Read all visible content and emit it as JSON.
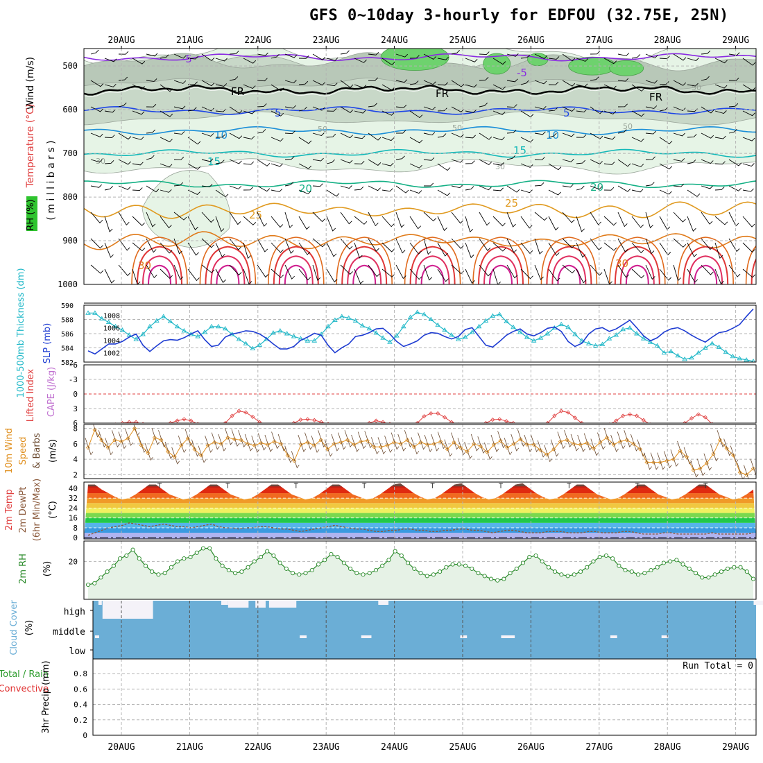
{
  "title": "GFS 0~10day 3-hourly for EDFOU (32.75E, 25N)",
  "chart_data": [
    {
      "type": "line",
      "panel": "upper-air cross-section",
      "labels": {
        "wind": "Wind (m/s)",
        "temp": "Temperature (°C)",
        "rh": "RH (%)",
        "units": "( m i l l i b a r s )"
      },
      "y_ticks": [
        "500",
        "600",
        "700",
        "800",
        "900",
        "1000"
      ],
      "pressure_range": [
        460,
        1000
      ],
      "dates": [
        "20AUG",
        "21AUG",
        "22AUG",
        "23AUG",
        "24AUG",
        "25AUG",
        "26AUG",
        "27AUG",
        "28AUG",
        "29AUG"
      ],
      "isotherms": [
        {
          "name": "-5",
          "level": 480,
          "color": "#8a2be2"
        },
        {
          "name": "FR",
          "level": 555,
          "color": "#000000"
        },
        {
          "name": "5",
          "level": 602,
          "color": "#1e46e6"
        },
        {
          "name": "10",
          "level": 648,
          "color": "#1c8fd8"
        },
        {
          "name": "15",
          "level": 700,
          "color": "#12b8b8"
        },
        {
          "name": "20",
          "level": 770,
          "color": "#14b085"
        },
        {
          "name": "25",
          "level": 830,
          "color": "#e09a20"
        },
        {
          "name": "30",
          "level": 900,
          "color": "#e07b1a"
        }
      ],
      "contour_labels": [
        "-5",
        "-5",
        "FR",
        "FR",
        "FR",
        "5",
        "5",
        "10",
        "10",
        "15",
        "15",
        "20",
        "20",
        "25",
        "25",
        "30",
        "30",
        "50",
        "50",
        "50",
        "50",
        "30",
        "30"
      ]
    },
    {
      "type": "line",
      "panel": "thickness / slp",
      "labels": {
        "thickness": "1000-500mb Thickness (dm)",
        "slp": "SLP (mb)"
      },
      "left_ticks": [
        "590",
        "588",
        "586",
        "584",
        "582"
      ],
      "right_ticks": [
        "1008",
        "1006",
        "1004",
        "1002"
      ],
      "series": [
        {
          "name": "Thickness",
          "color": "#20b8c8",
          "values": [
            588.9,
            588.9,
            588.1,
            587.6,
            587.0,
            586.5,
            585.8,
            585.2,
            585.9,
            587.0,
            587.8,
            588.4,
            587.7,
            587.0,
            586.4,
            585.9,
            585.6,
            586.2,
            587.0,
            587.0,
            586.7,
            585.9,
            585.2,
            584.6,
            583.9,
            584.4,
            585.2,
            586.1,
            586.4,
            586.0,
            585.6,
            585.3,
            585.0,
            585.0,
            585.9,
            587.0,
            587.9,
            588.4,
            588.2,
            587.8,
            587.1,
            586.7,
            586.1,
            585.4,
            584.8,
            585.7,
            587.0,
            588.3,
            589.0,
            588.7,
            588.0,
            587.2,
            586.5,
            585.8,
            585.2,
            585.5,
            586.2,
            587.0,
            587.8,
            588.5,
            588.7,
            587.7,
            586.9,
            586.2,
            585.5,
            585.0,
            585.4,
            586.0,
            586.8,
            587.3,
            586.9,
            585.9,
            585.0,
            584.6,
            584.3,
            584.5,
            585.3,
            585.8,
            586.6,
            586.8,
            586.0,
            585.3,
            584.8,
            584.3,
            583.3,
            583.5,
            582.9,
            582.4,
            582.6,
            583.3,
            584.0,
            584.6,
            584.1,
            583.4,
            582.8,
            582.5,
            582.3,
            582.1
          ]
        },
        {
          "name": "SLP",
          "color": "#1e3cd2",
          "values": [
            1002.3,
            1001.8,
            1002.6,
            1003.4,
            1003.4,
            1003.8,
            1004.5,
            1005.0,
            1003.2,
            1002.2,
            1003.1,
            1003.9,
            1004.1,
            1004.0,
            1004.4,
            1005.0,
            1005.5,
            1004.1,
            1003.0,
            1003.2,
            1004.5,
            1005.0,
            1005.2,
            1005.5,
            1005.4,
            1005.0,
            1004.3,
            1003.4,
            1002.6,
            1002.6,
            1003.0,
            1004.0,
            1004.5,
            1005.1,
            1004.8,
            1003.2,
            1002.0,
            1002.8,
            1003.4,
            1004.6,
            1004.8,
            1005.2,
            1005.8,
            1005.9,
            1005.0,
            1003.8,
            1003.0,
            1003.4,
            1003.9,
            1004.8,
            1005.2,
            1005.1,
            1004.6,
            1004.2,
            1004.6,
            1005.7,
            1006.0,
            1004.6,
            1003.2,
            1002.9,
            1003.8,
            1004.8,
            1005.4,
            1005.8,
            1005.0,
            1004.7,
            1005.2,
            1005.9,
            1006.1,
            1005.4,
            1003.8,
            1003.0,
            1003.5,
            1005.0,
            1005.8,
            1006.0,
            1005.4,
            1005.8,
            1006.5,
            1007.2,
            1006.0,
            1004.7,
            1003.9,
            1004.4,
            1005.3,
            1005.8,
            1006.0,
            1005.5,
            1004.8,
            1004.2,
            1003.7,
            1004.5,
            1005.2,
            1005.4,
            1005.9,
            1006.5,
            1007.8,
            1009.0
          ]
        }
      ]
    },
    {
      "type": "line",
      "panel": "lifted index / cape",
      "labels": {
        "li": "Lifted Index",
        "cape": "CAPE (J/kg)"
      },
      "y_ticks": [
        "-6",
        "-3",
        "0",
        "3",
        "6"
      ],
      "series": [
        {
          "name": "Lifted Index",
          "color": "#e04040",
          "values": [
            6.5,
            6.5,
            6.5,
            6.5,
            6.3,
            6.0,
            5.8,
            5.8,
            6.2,
            6.5,
            6.5,
            6.5,
            6.0,
            5.5,
            5.2,
            5.5,
            6.2,
            6.5,
            6.5,
            6.5,
            6.0,
            4.5,
            3.5,
            3.8,
            4.7,
            5.8,
            6.5,
            6.5,
            6.5,
            6.5,
            6.0,
            5.3,
            5.2,
            5.4,
            5.8,
            6.2,
            6.5,
            6.5,
            6.5,
            6.5,
            6.5,
            6.0,
            5.5,
            5.8,
            6.2,
            6.5,
            6.5,
            6.5,
            6.0,
            4.6,
            4.0,
            4.0,
            4.8,
            5.8,
            6.3,
            6.5,
            6.5,
            6.5,
            6.0,
            5.3,
            5.2,
            5.6,
            6.0,
            6.5,
            6.5,
            6.5,
            6.5,
            6.0,
            4.5,
            3.5,
            3.8,
            4.9,
            6.0,
            6.5,
            6.5,
            6.5,
            6.3,
            5.5,
            4.5,
            4.2,
            4.5,
            5.4,
            6.3,
            6.5,
            6.5,
            6.5,
            6.5,
            6.0,
            5.0,
            4.2,
            4.8,
            6.2,
            6.5,
            6.5,
            6.5,
            6.5,
            6.5,
            6.5
          ]
        }
      ]
    },
    {
      "type": "line",
      "panel": "10m wind",
      "labels": {
        "main": "10m Wind",
        "speed": "Speed",
        "barbs": "& Barbs",
        "units": "(m/s)"
      },
      "y_ticks": [
        "8",
        "6",
        "4",
        "2"
      ],
      "series": [
        {
          "name": "10m Wind Speed",
          "color": "#e09020",
          "values": [
            5.5,
            7.8,
            6.5,
            5.5,
            6.5,
            6.3,
            6.7,
            8.0,
            5.8,
            4.8,
            6.8,
            6.5,
            5.0,
            4.3,
            5.8,
            6.7,
            5.3,
            4.5,
            5.8,
            6.2,
            6.0,
            6.8,
            6.6,
            6.5,
            6.0,
            5.8,
            6.1,
            5.9,
            6.3,
            6.0,
            4.5,
            3.8,
            5.9,
            6.2,
            5.8,
            6.5,
            5.3,
            6.0,
            6.2,
            6.5,
            5.9,
            6.3,
            6.4,
            5.6,
            5.6,
            5.8,
            6.2,
            6.0,
            6.5,
            5.6,
            6.2,
            5.9,
            6.0,
            6.3,
            5.3,
            6.2,
            5.5,
            5.0,
            6.0,
            5.7,
            4.9,
            5.9,
            6.4,
            5.5,
            6.0,
            6.6,
            5.9,
            5.9,
            5.2,
            4.6,
            5.3,
            6.3,
            6.5,
            6.0,
            5.9,
            6.1,
            5.4,
            6.2,
            6.8,
            5.9,
            6.3,
            6.5,
            6.0,
            5.3,
            3.6,
            3.6,
            3.6,
            3.8,
            4.0,
            5.1,
            4.3,
            2.6,
            2.8,
            3.5,
            4.7,
            6.5,
            5.4,
            4.5,
            2.3,
            2.0,
            2.8
          ]
        }
      ]
    },
    {
      "type": "area",
      "panel": "2m temperature",
      "labels": {
        "temp": "2m Temp",
        "dew": "2m DewPt",
        "minmax": "(6hr Min/Max)",
        "units": "(°C)"
      },
      "y_ticks": [
        "40",
        "32",
        "24",
        "16",
        "8",
        "0"
      ],
      "series": [
        {
          "name": "2m Temp",
          "values": [
            43,
            43,
            39,
            36,
            33,
            31,
            32,
            35,
            39,
            43,
            43,
            39,
            35,
            33,
            31,
            32,
            35,
            39,
            43,
            43,
            39,
            35,
            33,
            31,
            32,
            35,
            39,
            43,
            43,
            39,
            35,
            33,
            31,
            32,
            35,
            39,
            43,
            43,
            39,
            35,
            33,
            31,
            32,
            35,
            39,
            43,
            44,
            40,
            36,
            33,
            31,
            32,
            35,
            39,
            43,
            44,
            40,
            36,
            33,
            31,
            32,
            35,
            39,
            43,
            44,
            40,
            36,
            33,
            31,
            32,
            35,
            39,
            43,
            43,
            39,
            35,
            33,
            31,
            32,
            35,
            39,
            43,
            43,
            39,
            35,
            33,
            31,
            32,
            35,
            39,
            43,
            43,
            39,
            35,
            33,
            31,
            32,
            35,
            39
          ]
        },
        {
          "name": "2m DewPt",
          "color": "#8b5a3c",
          "values": [
            2,
            4,
            6,
            8,
            9,
            10,
            12,
            11,
            10,
            9,
            10,
            11,
            10,
            9,
            9,
            8,
            9,
            10,
            11,
            9,
            8,
            8,
            7,
            8,
            8,
            9,
            9,
            8,
            7,
            7,
            6,
            5,
            6,
            7,
            8,
            9,
            10,
            9,
            8,
            7,
            7,
            6,
            5,
            5,
            6,
            6,
            7,
            7,
            6,
            6,
            5,
            5,
            6,
            6,
            7,
            7,
            6,
            6,
            5,
            4,
            5,
            6,
            6,
            5,
            4,
            4,
            4,
            5,
            5,
            5,
            4,
            4,
            4,
            5,
            5,
            4,
            4,
            4,
            5,
            5,
            4,
            3,
            3,
            3,
            4,
            4,
            3,
            3,
            3,
            3,
            3,
            4,
            3,
            3,
            3,
            3,
            3,
            4
          ]
        }
      ]
    },
    {
      "type": "area",
      "panel": "2m rh",
      "labels": {
        "main": "2m RH",
        "units": "(%)"
      },
      "y_ticks": [
        "20"
      ],
      "series": [
        {
          "name": "2m RH",
          "color": "#2a8a2a",
          "values": [
            4,
            5,
            9,
            13,
            17,
            22,
            24,
            28,
            22,
            17,
            13,
            11,
            12,
            16,
            20,
            22,
            23,
            26,
            29,
            29,
            22,
            17,
            14,
            12,
            13,
            16,
            20,
            23,
            27,
            24,
            19,
            15,
            12,
            11,
            12,
            14,
            18,
            21,
            25,
            23,
            19,
            15,
            12,
            11,
            12,
            14,
            17,
            21,
            27,
            24,
            19,
            15,
            12,
            10,
            11,
            13,
            16,
            18,
            18,
            17,
            15,
            12,
            10,
            8,
            7,
            8,
            12,
            15,
            19,
            23,
            24,
            20,
            16,
            13,
            11,
            10,
            11,
            13,
            16,
            20,
            23,
            24,
            22,
            17,
            14,
            13,
            11,
            12,
            14,
            16,
            19,
            20,
            21,
            18,
            15,
            12,
            9,
            9,
            11,
            13,
            15,
            16,
            16,
            13,
            8
          ]
        }
      ]
    },
    {
      "type": "bar",
      "panel": "cloud cover",
      "labels": {
        "main": "Cloud Cover",
        "units": "(%)",
        "high": "high",
        "middle": "middle",
        "low": "low"
      },
      "y_ticks": [
        "high",
        "middle",
        "low"
      ],
      "high_gap_segments": [
        [
          1.5,
          1.55
        ],
        [
          1.56,
          2.3
        ],
        [
          3.3,
          3.4
        ],
        [
          3.4,
          3.7
        ],
        [
          3.8,
          3.95
        ],
        [
          4.0,
          4.4
        ],
        [
          5.6,
          5.75
        ],
        [
          11.1,
          11.25
        ],
        [
          12.2,
          12.3
        ],
        [
          12.45,
          12.6
        ],
        [
          12.7,
          12.9
        ],
        [
          15.1,
          15.2
        ],
        [
          15.3,
          15.45
        ],
        [
          15.45,
          15.6
        ],
        [
          16.2,
          16.35
        ]
      ],
      "middle_gap_segments": [
        [
          1.45,
          1.5
        ],
        [
          4.45,
          4.55
        ],
        [
          5.35,
          5.5
        ],
        [
          6.8,
          6.9
        ],
        [
          7.4,
          7.6
        ],
        [
          9.0,
          9.1
        ],
        [
          9.75,
          9.85
        ],
        [
          11.35,
          11.45
        ],
        [
          12.35,
          12.45
        ]
      ]
    },
    {
      "type": "bar",
      "panel": "precipitation",
      "labels": {
        "total": "Total / Rain",
        "conv": "Convective",
        "axis": "3hr Precip (mm)",
        "run_total": "Run Total = 0"
      },
      "y_ticks": [
        "0.8",
        "0.6",
        "0.4",
        "0.2",
        "0"
      ],
      "values": [
        0,
        0,
        0,
        0,
        0,
        0,
        0,
        0,
        0,
        0
      ]
    }
  ],
  "colors": {
    "grid": "#b4b4b4",
    "cloud": "#6baed6",
    "rh_fill": "#e6f4e6",
    "rh_dark": "#c8d8c8",
    "rh_green": "#6ed26e",
    "frame": "#000000"
  }
}
